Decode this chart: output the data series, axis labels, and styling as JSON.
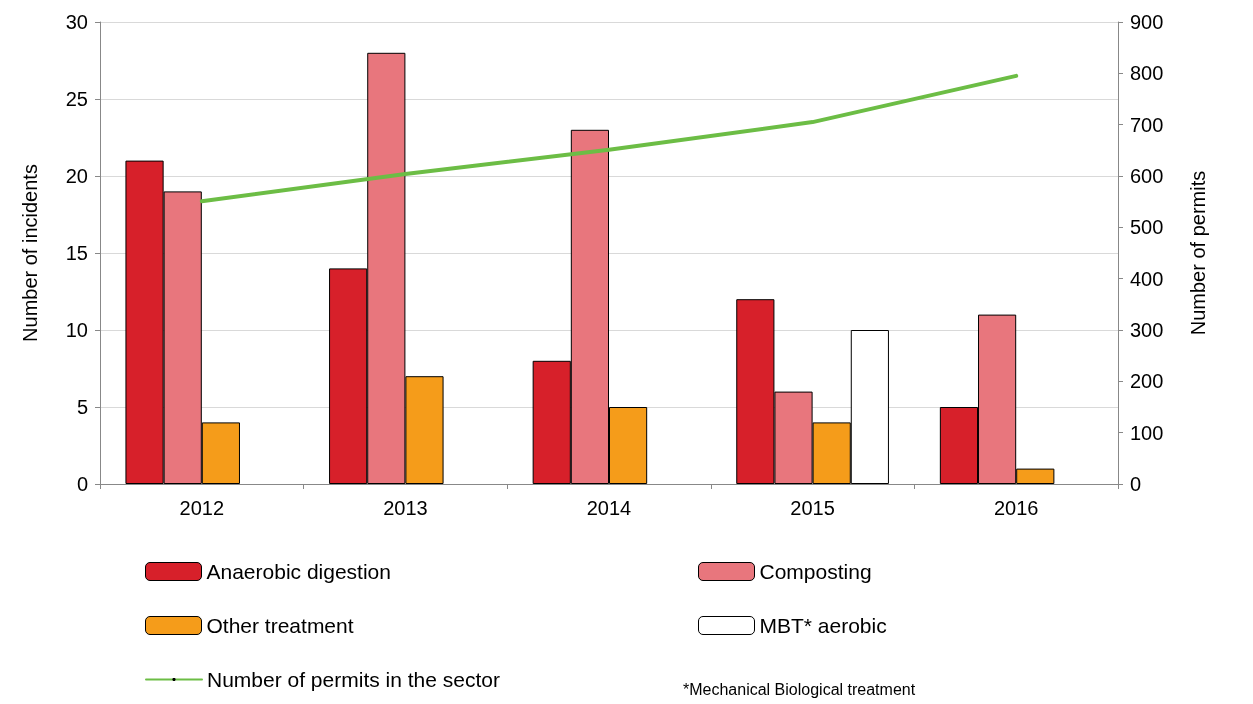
{
  "chart_data": {
    "type": "bar",
    "categories": [
      "2012",
      "2013",
      "2014",
      "2015",
      "2016"
    ],
    "ylabel": "Number of incidents",
    "y2label": "Number of permits",
    "ylim": [
      0,
      30
    ],
    "yticks": [
      0,
      5,
      10,
      15,
      20,
      25,
      30
    ],
    "y2lim": [
      0,
      900
    ],
    "y2ticks": [
      0,
      100,
      200,
      300,
      400,
      500,
      600,
      700,
      800,
      900
    ],
    "series": [
      {
        "name": "Anaerobic digestion",
        "color": "#d7202a",
        "values": [
          21,
          14,
          8,
          12,
          5
        ]
      },
      {
        "name": "Composting",
        "color": "#e8767d",
        "values": [
          19,
          28,
          23,
          6,
          11
        ]
      },
      {
        "name": "Other treatment",
        "color": "#f59c1a",
        "values": [
          4,
          7,
          5,
          4,
          1
        ]
      },
      {
        "name": "MBT* aerobic",
        "color": "#ffffff",
        "values": [
          null,
          null,
          null,
          10,
          null
        ]
      },
      {
        "name": "Number of permits in the sector",
        "type": "line",
        "axis": "y2",
        "color": "#6cbd45",
        "values": [
          551,
          604,
          651,
          705,
          795
        ]
      }
    ],
    "grid": "y",
    "legend": "bottom",
    "marker": "none",
    "annotations": [
      "*Mechanical Biological treatment"
    ]
  }
}
